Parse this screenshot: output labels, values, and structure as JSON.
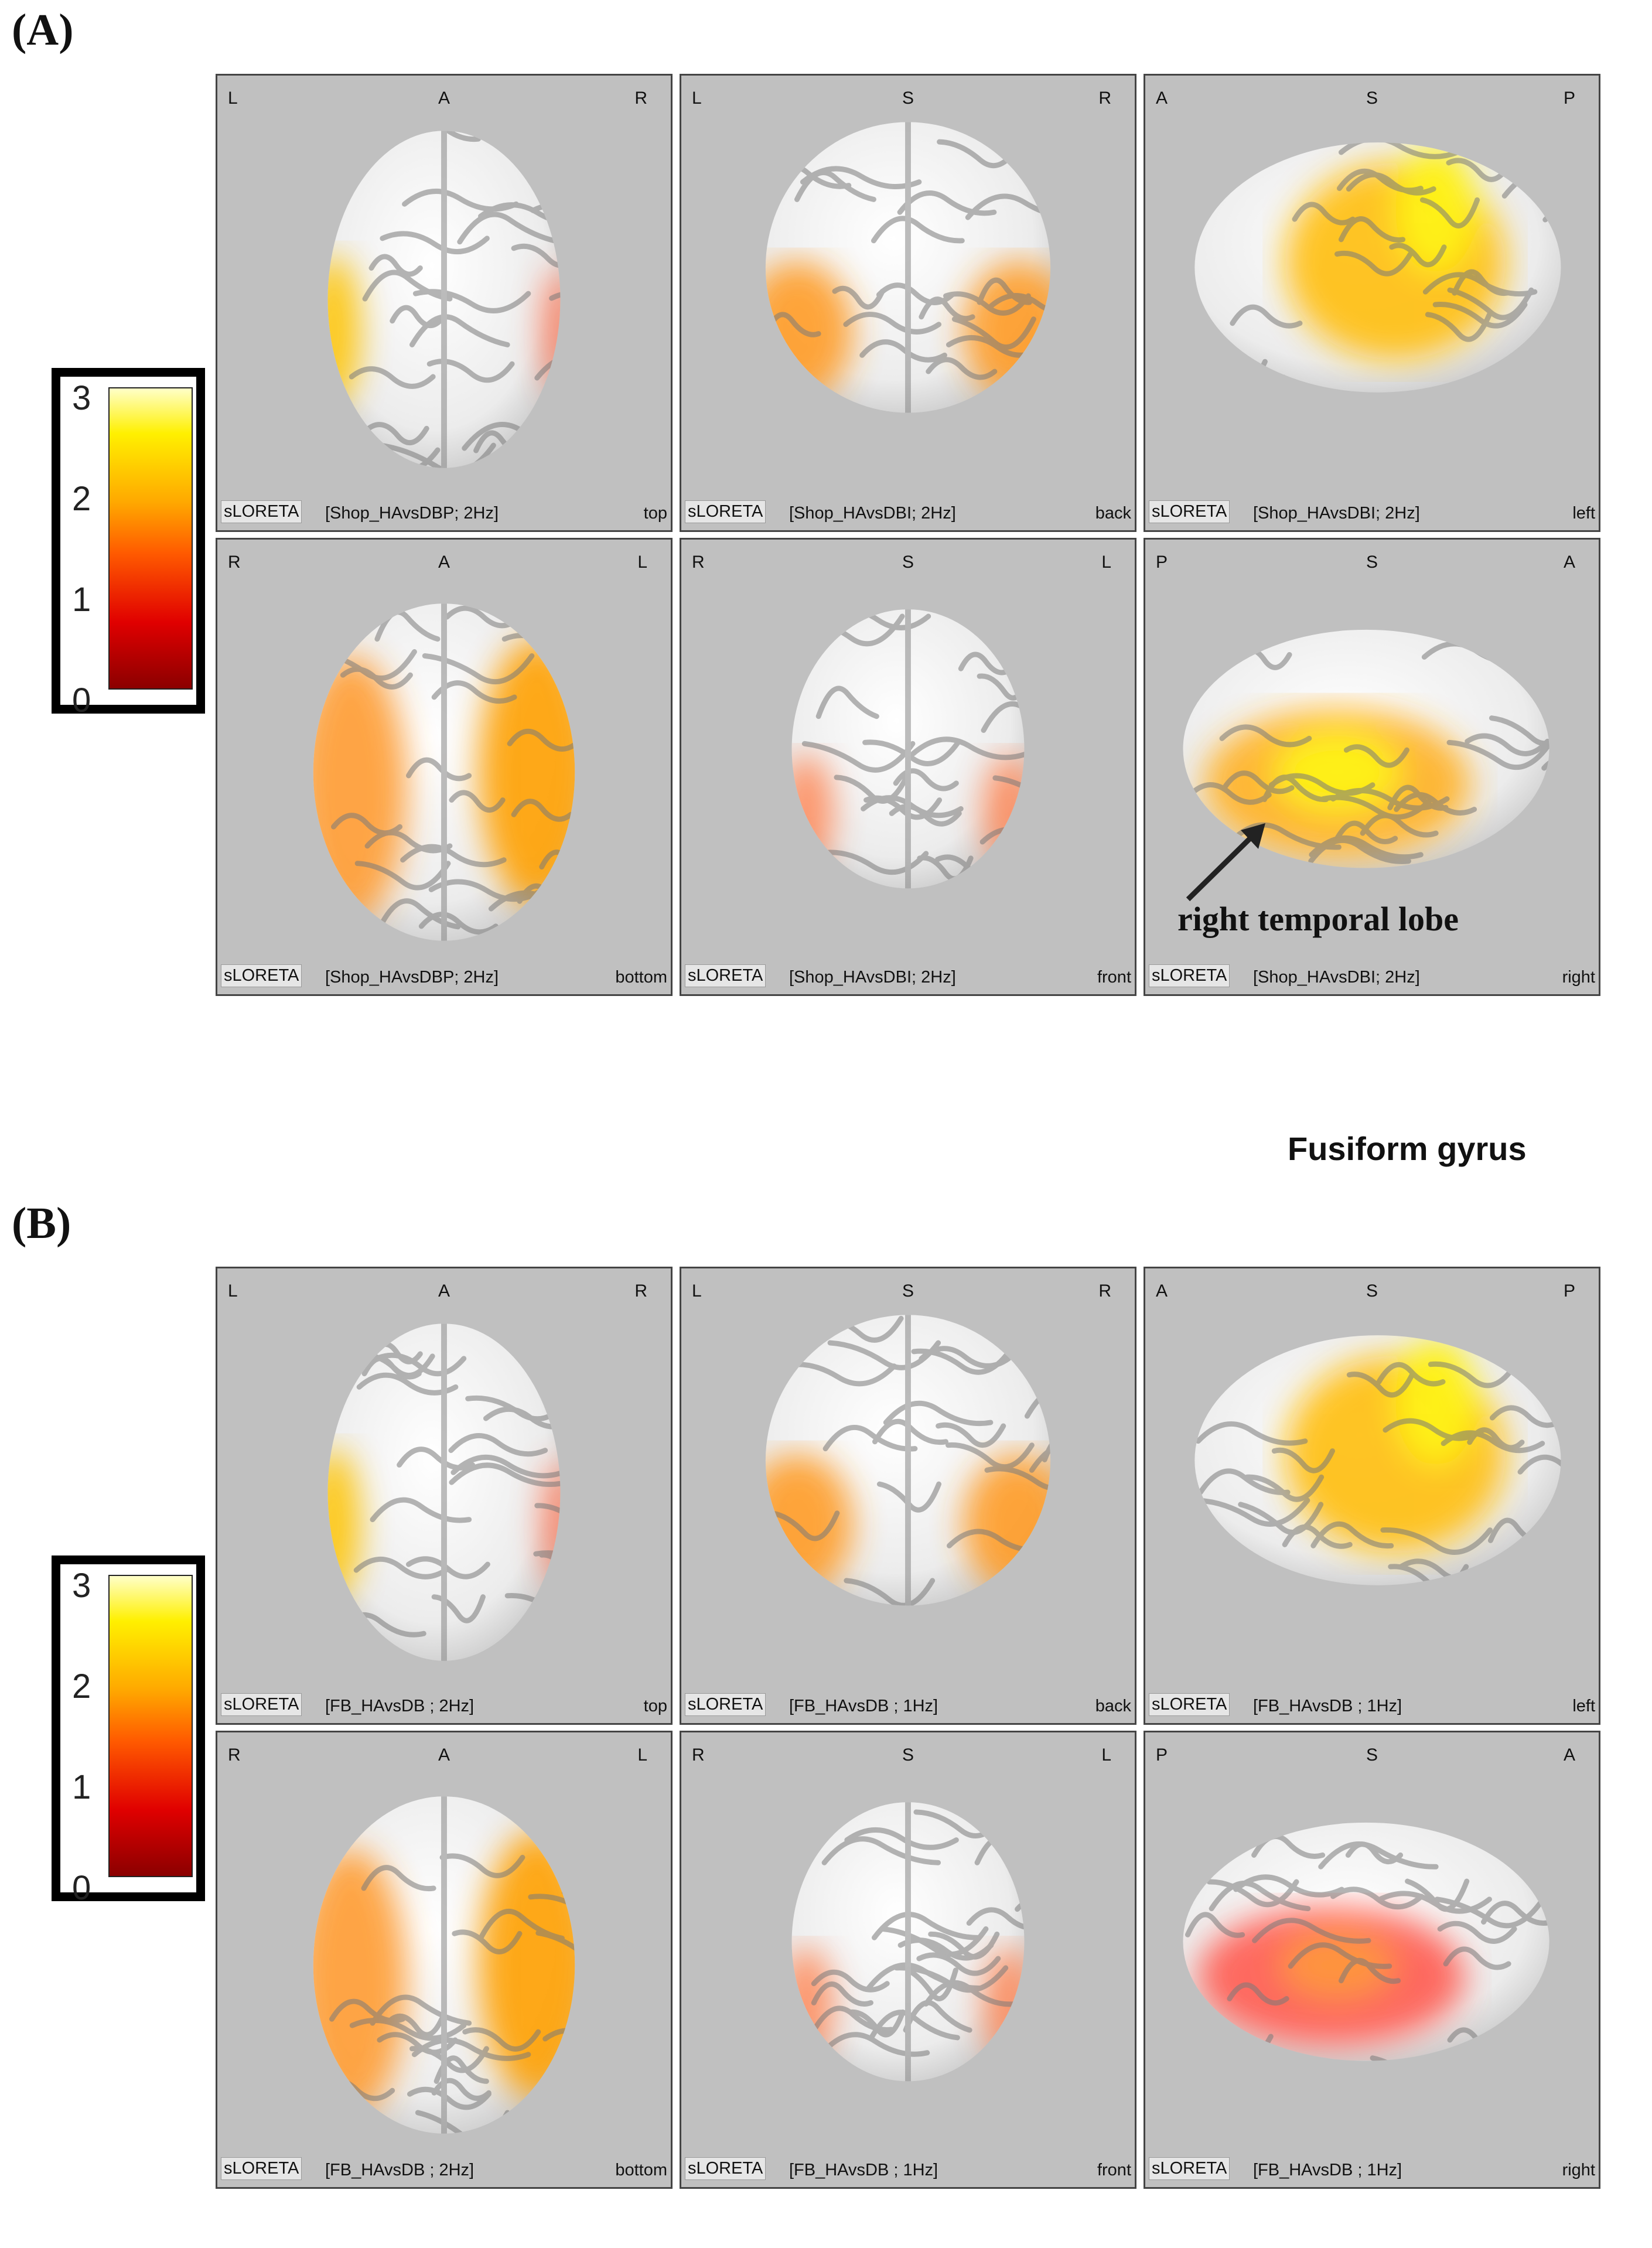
{
  "panels": [
    {
      "label": "(A)",
      "colorbar": {
        "ticks": [
          "3",
          "2",
          "1",
          "0"
        ]
      },
      "views": [
        {
          "tl": "L",
          "tc": "A",
          "tr": "R",
          "method": "sLORETA",
          "desc": "[Shop_HAvsDBP; 2Hz]",
          "view": "top",
          "shape": "top",
          "hot": "top"
        },
        {
          "tl": "L",
          "tc": "S",
          "tr": "R",
          "method": "sLORETA",
          "desc": "[Shop_HAvsDBI; 2Hz]",
          "view": "back",
          "shape": "front",
          "hot": "sides"
        },
        {
          "tl": "A",
          "tc": "S",
          "tr": "P",
          "method": "sLORETA",
          "desc": "[Shop_HAvsDBI; 2Hz]",
          "view": "left",
          "shape": "lat",
          "hot": "lat"
        },
        {
          "tl": "R",
          "tc": "A",
          "tr": "L",
          "method": "sLORETA",
          "desc": "[Shop_HAvsDBP; 2Hz]",
          "view": "bottom",
          "shape": "bottom",
          "hot": "bottom"
        },
        {
          "tl": "R",
          "tc": "S",
          "tr": "L",
          "method": "sLORETA",
          "desc": "[Shop_HAvsDBI; 2Hz]",
          "view": "front",
          "shape": "frontsmall",
          "hot": "sidesmall"
        },
        {
          "tl": "P",
          "tc": "S",
          "tr": "A",
          "method": "sLORETA",
          "desc": "[Shop_HAvsDBI; 2Hz]",
          "view": "right",
          "shape": "latR",
          "hot": "latR"
        }
      ],
      "annotation": "right temporal lobe"
    },
    {
      "label": "(B)",
      "title": "Fusiform gyrus",
      "colorbar": {
        "ticks": [
          "3",
          "2",
          "1",
          "0"
        ]
      },
      "views": [
        {
          "tl": "L",
          "tc": "A",
          "tr": "R",
          "method": "sLORETA",
          "desc": "[FB_HAvsDB ; 2Hz]",
          "view": "top",
          "shape": "top",
          "hot": "top"
        },
        {
          "tl": "L",
          "tc": "S",
          "tr": "R",
          "method": "sLORETA",
          "desc": "[FB_HAvsDB ; 1Hz]",
          "view": "back",
          "shape": "front",
          "hot": "sides"
        },
        {
          "tl": "A",
          "tc": "S",
          "tr": "P",
          "method": "sLORETA",
          "desc": "[FB_HAvsDB ; 1Hz]",
          "view": "left",
          "shape": "lat",
          "hot": "lat"
        },
        {
          "tl": "R",
          "tc": "A",
          "tr": "L",
          "method": "sLORETA",
          "desc": "[FB_HAvsDB ; 2Hz]",
          "view": "bottom",
          "shape": "bottom",
          "hot": "bottom"
        },
        {
          "tl": "R",
          "tc": "S",
          "tr": "L",
          "method": "sLORETA",
          "desc": "[FB_HAvsDB ; 1Hz]",
          "view": "front",
          "shape": "frontsmall",
          "hot": "sidesmall"
        },
        {
          "tl": "P",
          "tc": "S",
          "tr": "A",
          "method": "sLORETA",
          "desc": "[FB_HAvsDB ; 1Hz]",
          "view": "right",
          "shape": "latR",
          "hot": "latRred"
        }
      ]
    }
  ],
  "colors": {
    "background": "#c0c0c0",
    "brain": "#f2f2f2",
    "sulcus": "#6e6e6e"
  }
}
